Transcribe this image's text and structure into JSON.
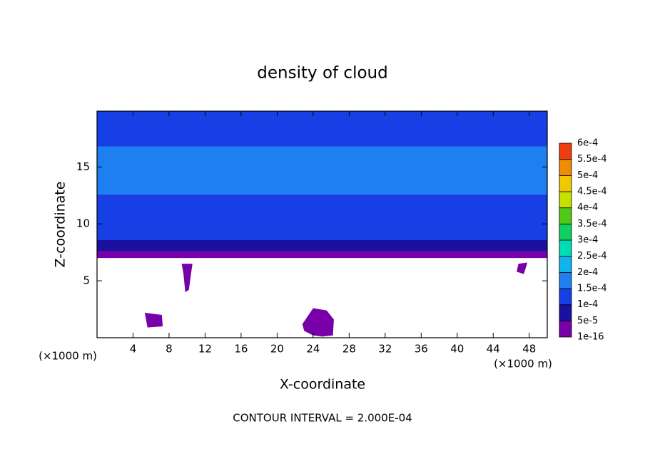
{
  "chart_data": {
    "type": "contour",
    "title": "density of cloud",
    "x_label": "X-coordinate",
    "y_label": "Z-coordinate",
    "x_unit_labels": [
      "(×1000 m)",
      "(×1000 m)"
    ],
    "footer": "CONTOUR INTERVAL = 2.000E-04",
    "xlim": [
      0,
      50
    ],
    "xticks": [
      4,
      8,
      12,
      16,
      20,
      24,
      28,
      32,
      36,
      40,
      44,
      48
    ],
    "ylim": [
      0,
      19.9
    ],
    "yticks": [
      5,
      10,
      15
    ],
    "levels": [
      {
        "value": 1e-16,
        "label": "1e-16"
      },
      {
        "value": 5e-05,
        "label": "5e-5"
      },
      {
        "value": 0.0001,
        "label": "1e-4"
      },
      {
        "value": 0.00015,
        "label": "1.5e-4"
      },
      {
        "value": 0.0002,
        "label": "2e-4"
      },
      {
        "value": 0.00025,
        "label": "2.5e-4"
      },
      {
        "value": 0.0003,
        "label": "3e-4"
      },
      {
        "value": 0.00035,
        "label": "3.5e-4"
      },
      {
        "value": 0.0004,
        "label": "4e-4"
      },
      {
        "value": 0.00045,
        "label": "4.5e-4"
      },
      {
        "value": 0.0005,
        "label": "5e-4"
      },
      {
        "value": 0.00055,
        "label": "5.5e-4"
      },
      {
        "value": 0.0006,
        "label": "6e-4"
      }
    ],
    "colors": [
      "#7800a8",
      "#1c10a0",
      "#1640e6",
      "#1e80f0",
      "#12b4f0",
      "#00dcb4",
      "#10d060",
      "#50c818",
      "#c8e000",
      "#f0c800",
      "#f08c00",
      "#f03c10",
      "#f09090"
    ],
    "layers": {
      "z0": [
        7.0,
        7.6,
        8.6,
        12.6,
        16.8,
        18.9
      ],
      "z1": [
        7.6,
        8.6,
        12.6,
        16.8,
        18.9,
        19.9
      ],
      "values": [
        2e-05,
        7e-05,
        0.00012,
        0.00017,
        0.00013,
        0.00011
      ]
    },
    "blobs": [
      {
        "x": [
          22.8,
          24.0,
          25.5,
          26.3,
          26.2,
          25.0,
          24.0,
          23.0
        ],
        "z": [
          1.2,
          2.6,
          2.4,
          1.6,
          0.2,
          0.1,
          0.2,
          0.6
        ],
        "value": 2e-05
      },
      {
        "x": [
          9.4,
          10.6,
          10.4,
          10.2,
          9.8,
          9.6
        ],
        "z": [
          6.5,
          6.5,
          5.4,
          4.2,
          4.0,
          5.6
        ],
        "value": 2e-05
      },
      {
        "x": [
          5.3,
          7.2,
          7.3,
          5.6
        ],
        "z": [
          2.2,
          2.0,
          1.0,
          0.9
        ],
        "value": 2e-05
      },
      {
        "x": [
          46.8,
          47.8,
          47.4,
          46.6
        ],
        "z": [
          6.5,
          6.6,
          5.6,
          5.8
        ],
        "value": 2e-05
      }
    ]
  }
}
